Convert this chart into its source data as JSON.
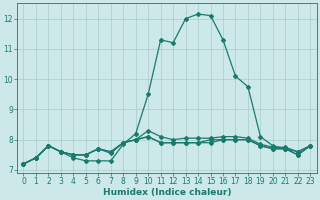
{
  "xlabel": "Humidex (Indice chaleur)",
  "x": [
    0,
    1,
    2,
    3,
    4,
    5,
    6,
    7,
    8,
    9,
    10,
    11,
    12,
    13,
    14,
    15,
    16,
    17,
    18,
    19,
    20,
    21,
    22,
    23
  ],
  "lines": [
    [
      7.2,
      7.4,
      7.8,
      7.6,
      7.4,
      7.3,
      7.3,
      7.3,
      7.85,
      8.2,
      9.5,
      11.3,
      11.2,
      12.0,
      12.15,
      12.1,
      11.3,
      10.1,
      9.75,
      8.1,
      7.8,
      7.7,
      7.6,
      7.8
    ],
    [
      7.2,
      7.4,
      7.8,
      7.6,
      7.5,
      7.5,
      7.7,
      7.55,
      7.9,
      8.0,
      8.3,
      8.1,
      8.0,
      8.05,
      8.05,
      8.05,
      8.1,
      8.1,
      8.05,
      7.85,
      7.75,
      7.75,
      7.6,
      7.8
    ],
    [
      7.2,
      7.4,
      7.8,
      7.6,
      7.5,
      7.5,
      7.7,
      7.6,
      7.9,
      8.0,
      8.1,
      7.9,
      7.9,
      7.9,
      7.9,
      7.9,
      8.0,
      8.0,
      8.0,
      7.8,
      7.7,
      7.7,
      7.5,
      7.8
    ],
    [
      7.2,
      7.4,
      7.8,
      7.6,
      7.5,
      7.5,
      7.7,
      7.6,
      7.9,
      8.0,
      8.1,
      7.9,
      7.9,
      7.9,
      7.9,
      8.0,
      8.0,
      8.0,
      8.0,
      7.8,
      7.7,
      7.7,
      7.5,
      7.8
    ]
  ],
  "line_color": "#1a7a6e",
  "bg_color": "#cce8e8",
  "grid_color": "#aacaca",
  "ylim": [
    6.9,
    12.5
  ],
  "yticks": [
    7,
    8,
    9,
    10,
    11,
    12
  ],
  "xticks": [
    0,
    1,
    2,
    3,
    4,
    5,
    6,
    7,
    8,
    9,
    10,
    11,
    12,
    13,
    14,
    15,
    16,
    17,
    18,
    19,
    20,
    21,
    22,
    23
  ],
  "marker": "D",
  "markersize": 2.0,
  "linewidth": 0.9,
  "xlabel_fontsize": 6.5,
  "tick_fontsize": 5.5
}
